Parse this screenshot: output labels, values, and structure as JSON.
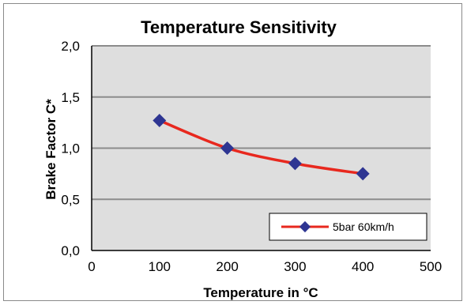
{
  "chart_data": {
    "type": "line",
    "title": "Temperature Sensitivity",
    "xlabel": "Temperature in °C",
    "ylabel": "Brake Factor C*",
    "xlim": [
      0,
      500
    ],
    "ylim": [
      0,
      2.0
    ],
    "x_ticks": [
      0,
      100,
      200,
      300,
      400,
      500
    ],
    "x_tick_labels": [
      "0",
      "100",
      "200",
      "300",
      "400",
      "500"
    ],
    "y_ticks": [
      0,
      0.5,
      1.0,
      1.5,
      2.0
    ],
    "y_tick_labels": [
      "0,0",
      "0,5",
      "1,0",
      "1,5",
      "2,0"
    ],
    "grid": "horizontal",
    "plot_background": "#dedede",
    "legend_position": "bottom-right",
    "series": [
      {
        "name": "5bar 60km/h",
        "line_color": "#e8281e",
        "marker_color": "#2e3592",
        "marker": "diamond",
        "x": [
          100,
          200,
          300,
          400
        ],
        "y": [
          1.27,
          1.0,
          0.85,
          0.75
        ]
      }
    ]
  }
}
